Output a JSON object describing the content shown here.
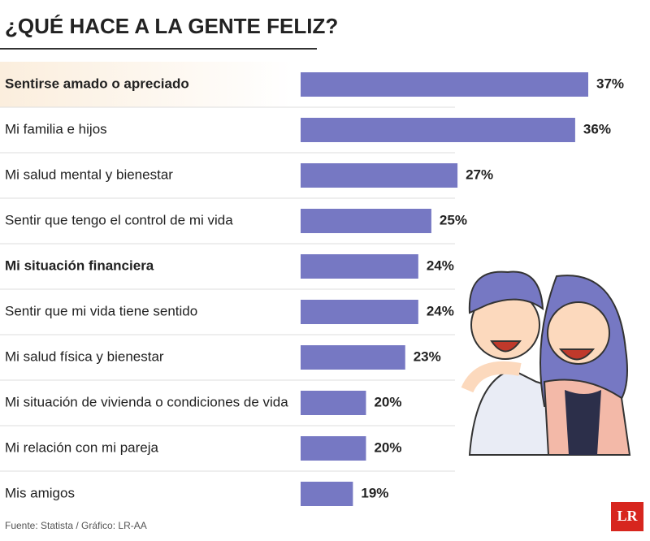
{
  "chart_data": {
    "type": "hbar",
    "title": "¿QUÉ HACE A LA GENTE FELIZ?",
    "categories": [
      "Sentirse amado o apreciado",
      "Mi familia e hijos",
      "Mi salud mental y bienestar",
      "Sentir que tengo el control de mi vida",
      "Mi situación financiera",
      "Sentir que mi vida tiene sentido",
      "Mi salud física y bienestar",
      "Mi situación de vivienda o condiciones de vida",
      "Mi relación con mi pareja",
      "Mis amigos"
    ],
    "values": [
      37,
      36,
      27,
      25,
      24,
      24,
      23,
      20,
      20,
      19
    ],
    "value_labels": [
      "37%",
      "36%",
      "27%",
      "25%",
      "24%",
      "24%",
      "23%",
      "20%",
      "20%",
      "19%"
    ],
    "color": "#7678c3",
    "xlim": [
      15,
      37
    ],
    "source": "Fuente: Statista / Gráfico: LR-AA",
    "logo": "LR"
  }
}
